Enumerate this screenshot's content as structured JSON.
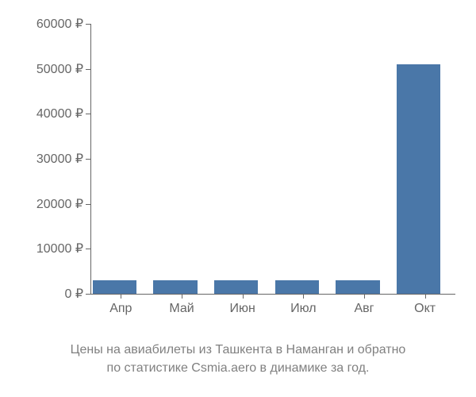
{
  "price_chart": {
    "type": "bar",
    "categories": [
      "Апр",
      "Май",
      "Июн",
      "Июл",
      "Авг",
      "Окт"
    ],
    "values": [
      3000,
      3000,
      3000,
      3000,
      3000,
      51000
    ],
    "bar_color": "#4a77a8",
    "background_color": "#ffffff",
    "axis_color": "#666666",
    "label_color": "#666666",
    "caption_color": "#808080",
    "ylim": [
      0,
      60000
    ],
    "ytick_step": 10000,
    "ytick_labels": [
      "0 ₽",
      "10000 ₽",
      "20000 ₽",
      "30000 ₽",
      "40000 ₽",
      "50000 ₽",
      "60000 ₽"
    ],
    "bar_width_fraction": 0.72,
    "label_fontsize": 16,
    "caption_fontsize": 16,
    "caption_line1": "Цены на авиабилеты из Ташкента в Наманган и обратно",
    "caption_line2": "по статистике Csmia.aero в динамике за год."
  }
}
